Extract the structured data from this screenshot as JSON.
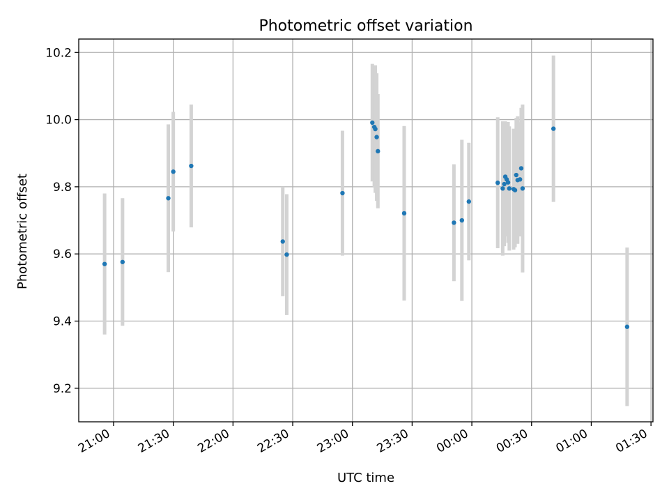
{
  "chart_data": {
    "type": "scatter",
    "title": "Photometric offset variation",
    "xlabel": "UTC time",
    "ylabel": "Photometric offset",
    "x_unit": "minutes",
    "x_ticks": [
      {
        "label": "21:00",
        "value": 0
      },
      {
        "label": "21:30",
        "value": 30
      },
      {
        "label": "22:00",
        "value": 60
      },
      {
        "label": "22:30",
        "value": 90
      },
      {
        "label": "23:00",
        "value": 120
      },
      {
        "label": "23:30",
        "value": 150
      },
      {
        "label": "00:00",
        "value": 180
      },
      {
        "label": "00:30",
        "value": 210
      },
      {
        "label": "01:00",
        "value": 240
      },
      {
        "label": "01:30",
        "value": 270
      }
    ],
    "y_ticks": [
      9.2,
      9.4,
      9.6,
      9.8,
      10.0,
      10.2
    ],
    "y_tick_labels": [
      "9.2",
      "9.4",
      "9.6",
      "9.8",
      "10.0",
      "10.2"
    ],
    "xlim": [
      -17.5,
      271
    ],
    "ylim": [
      9.1,
      10.24
    ],
    "grid": true,
    "colors": {
      "point": "#1f77b4",
      "errorbar": "#d3d3d3",
      "grid": "#b0b0b0",
      "axes": "#000000"
    },
    "points": [
      {
        "x": -4.5,
        "y": 9.57,
        "err": 0.21
      },
      {
        "x": 4.5,
        "y": 9.576,
        "err": 0.19
      },
      {
        "x": 27.5,
        "y": 9.766,
        "err": 0.22
      },
      {
        "x": 30,
        "y": 9.845,
        "err": 0.178
      },
      {
        "x": 39,
        "y": 9.862,
        "err": 0.183
      },
      {
        "x": 85,
        "y": 9.637,
        "err": 0.163
      },
      {
        "x": 87,
        "y": 9.598,
        "err": 0.18
      },
      {
        "x": 115,
        "y": 9.781,
        "err": 0.186
      },
      {
        "x": 130,
        "y": 9.991,
        "err": 0.175
      },
      {
        "x": 131,
        "y": 9.978,
        "err": 0.18
      },
      {
        "x": 131.5,
        "y": 9.972,
        "err": 0.19
      },
      {
        "x": 132.2,
        "y": 9.948,
        "err": 0.19
      },
      {
        "x": 132.8,
        "y": 9.906,
        "err": 0.17
      },
      {
        "x": 146,
        "y": 9.721,
        "err": 0.26
      },
      {
        "x": 171,
        "y": 9.693,
        "err": 0.174
      },
      {
        "x": 175,
        "y": 9.7,
        "err": 0.24
      },
      {
        "x": 178.5,
        "y": 9.756,
        "err": 0.175
      },
      {
        "x": 193,
        "y": 9.812,
        "err": 0.195
      },
      {
        "x": 195.5,
        "y": 9.795,
        "err": 0.2
      },
      {
        "x": 196.3,
        "y": 9.808,
        "err": 0.185
      },
      {
        "x": 196.8,
        "y": 9.83,
        "err": 0.165
      },
      {
        "x": 197.5,
        "y": 9.822,
        "err": 0.17
      },
      {
        "x": 198.2,
        "y": 9.813,
        "err": 0.18
      },
      {
        "x": 198.8,
        "y": 9.795,
        "err": 0.185
      },
      {
        "x": 201,
        "y": 9.793,
        "err": 0.18
      },
      {
        "x": 201.7,
        "y": 9.79,
        "err": 0.17
      },
      {
        "x": 202.3,
        "y": 9.835,
        "err": 0.17
      },
      {
        "x": 203,
        "y": 9.82,
        "err": 0.19
      },
      {
        "x": 204.2,
        "y": 9.822,
        "err": 0.17
      },
      {
        "x": 204.8,
        "y": 9.855,
        "err": 0.18
      },
      {
        "x": 205.5,
        "y": 9.795,
        "err": 0.25
      },
      {
        "x": 221,
        "y": 9.973,
        "err": 0.218
      },
      {
        "x": 258,
        "y": 9.383,
        "err": 0.236
      }
    ]
  }
}
